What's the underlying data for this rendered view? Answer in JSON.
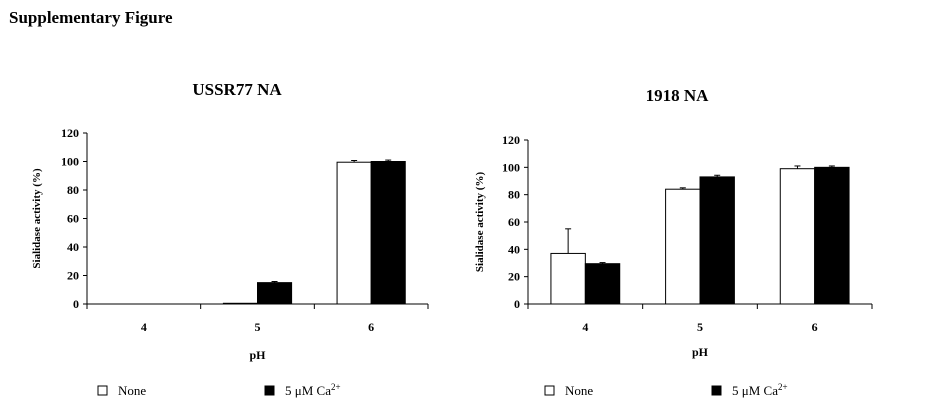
{
  "page_title": "Supplementary Figure",
  "colors": {
    "none": "#ffffff",
    "calcium": "#000000",
    "stroke": "#000000"
  },
  "chart_data": [
    {
      "type": "bar",
      "title": "USSR77 NA",
      "xlabel": "pH",
      "ylabel": "Sialidase activity (%)",
      "categories": [
        "4",
        "5",
        "6"
      ],
      "ylim": [
        0,
        120
      ],
      "yticks": [
        0,
        20,
        40,
        60,
        80,
        100,
        120
      ],
      "series": [
        {
          "name": "None",
          "values": [
            0,
            0.5,
            99.5
          ],
          "errors": [
            0,
            0,
            1.2
          ]
        },
        {
          "name": "5 μM Ca2+",
          "values": [
            0,
            15,
            100
          ],
          "errors": [
            0,
            0.8,
            1
          ]
        }
      ],
      "legend": {
        "none_label": "None",
        "calcium_prefix": "5 μM Ca",
        "calcium_sup": "2+"
      }
    },
    {
      "type": "bar",
      "title": "1918 NA",
      "xlabel": "pH",
      "ylabel": "Sialidase activity (%)",
      "categories": [
        "4",
        "5",
        "6"
      ],
      "ylim": [
        0,
        120
      ],
      "yticks": [
        0,
        20,
        40,
        60,
        80,
        100,
        120
      ],
      "series": [
        {
          "name": "None",
          "values": [
            37,
            84,
            99
          ],
          "errors": [
            18,
            1,
            2
          ]
        },
        {
          "name": "5 μM Ca2+",
          "values": [
            29.5,
            93,
            100
          ],
          "errors": [
            0.8,
            1.2,
            1
          ]
        }
      ],
      "legend": {
        "none_label": "None",
        "calcium_prefix": "5 μM Ca",
        "calcium_sup": "2+"
      }
    }
  ]
}
